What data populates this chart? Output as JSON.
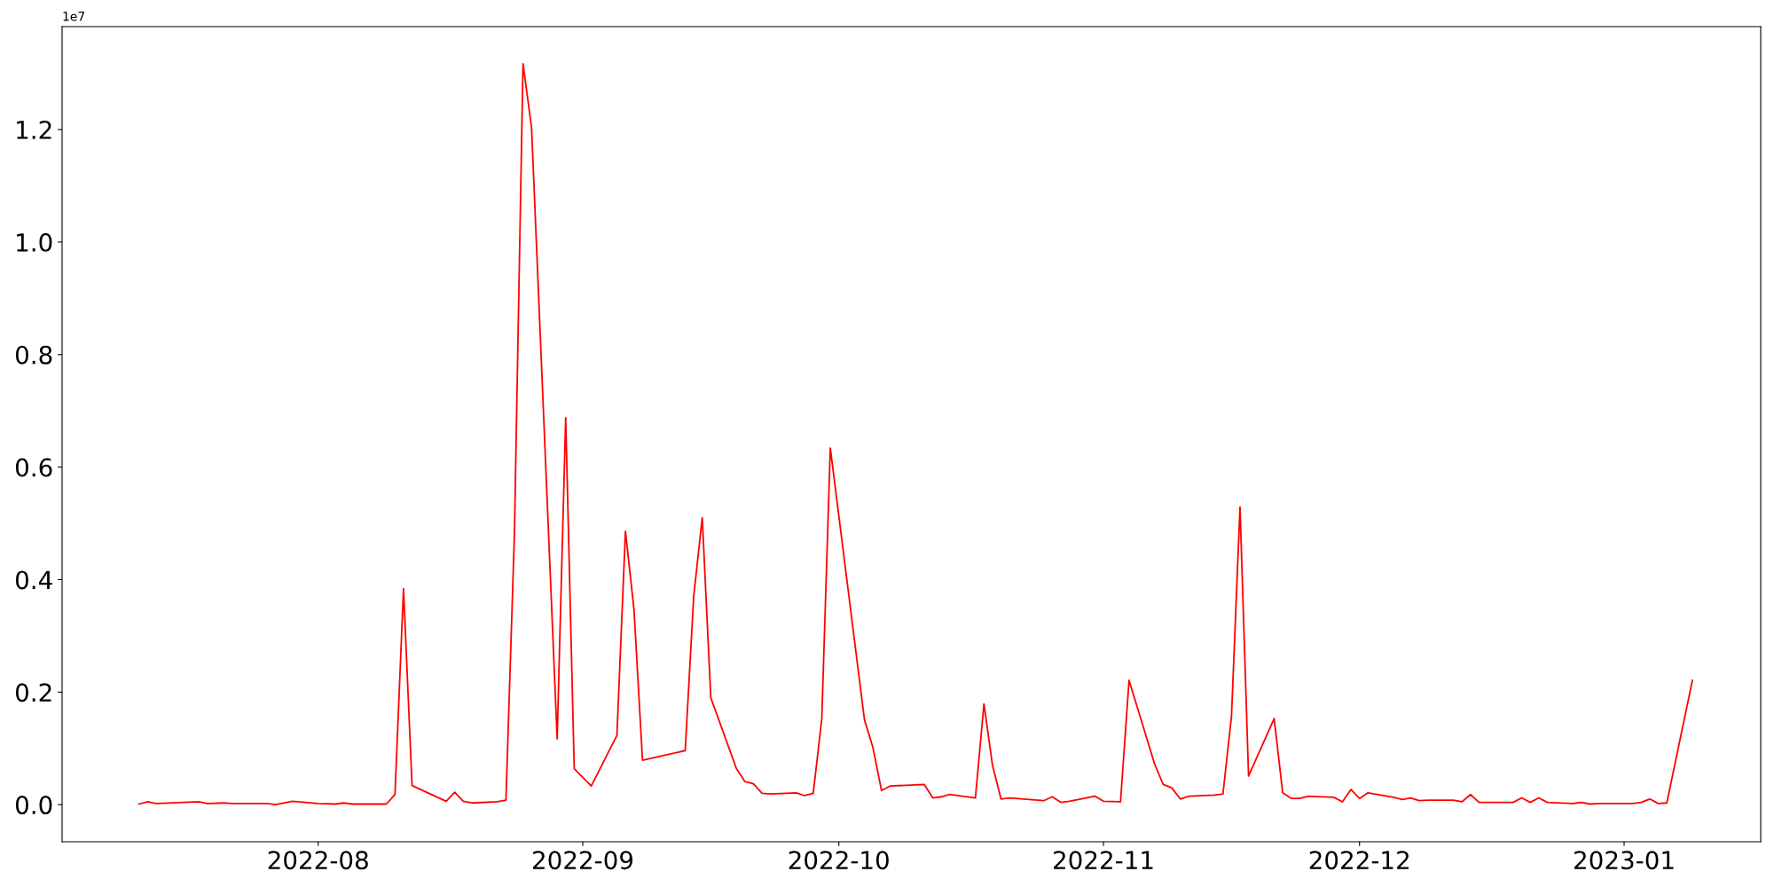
{
  "chart_data": {
    "type": "line",
    "x": [
      "2022-07-11",
      "2022-07-12",
      "2022-07-13",
      "2022-07-18",
      "2022-07-19",
      "2022-07-21",
      "2022-07-22",
      "2022-07-26",
      "2022-07-27",
      "2022-07-29",
      "2022-08-01",
      "2022-08-03",
      "2022-08-04",
      "2022-08-05",
      "2022-08-09",
      "2022-08-10",
      "2022-08-11",
      "2022-08-12",
      "2022-08-16",
      "2022-08-17",
      "2022-08-18",
      "2022-08-19",
      "2022-08-22",
      "2022-08-23",
      "2022-08-24",
      "2022-08-25",
      "2022-08-26",
      "2022-08-29",
      "2022-08-30",
      "2022-08-31",
      "2022-09-02",
      "2022-09-05",
      "2022-09-06",
      "2022-09-07",
      "2022-09-08",
      "2022-09-13",
      "2022-09-14",
      "2022-09-15",
      "2022-09-16",
      "2022-09-19",
      "2022-09-20",
      "2022-09-21",
      "2022-09-22",
      "2022-09-23",
      "2022-09-26",
      "2022-09-27",
      "2022-09-28",
      "2022-09-29",
      "2022-09-30",
      "2022-10-04",
      "2022-10-05",
      "2022-10-06",
      "2022-10-07",
      "2022-10-11",
      "2022-10-12",
      "2022-10-13",
      "2022-10-14",
      "2022-10-17",
      "2022-10-18",
      "2022-10-19",
      "2022-10-20",
      "2022-10-21",
      "2022-10-25",
      "2022-10-26",
      "2022-10-27",
      "2022-10-28",
      "2022-10-31",
      "2022-11-01",
      "2022-11-03",
      "2022-11-04",
      "2022-11-07",
      "2022-11-08",
      "2022-11-09",
      "2022-11-10",
      "2022-11-11",
      "2022-11-14",
      "2022-11-15",
      "2022-11-16",
      "2022-11-17",
      "2022-11-18",
      "2022-11-21",
      "2022-11-22",
      "2022-11-23",
      "2022-11-24",
      "2022-11-25",
      "2022-11-28",
      "2022-11-29",
      "2022-11-30",
      "2022-12-01",
      "2022-12-02",
      "2022-12-05",
      "2022-12-06",
      "2022-12-07",
      "2022-12-08",
      "2022-12-09",
      "2022-12-12",
      "2022-12-13",
      "2022-12-14",
      "2022-12-15",
      "2022-12-19",
      "2022-12-20",
      "2022-12-21",
      "2022-12-22",
      "2022-12-23",
      "2022-12-26",
      "2022-12-27",
      "2022-12-28",
      "2022-12-29",
      "2023-01-02",
      "2023-01-03",
      "2023-01-04",
      "2023-01-05",
      "2023-01-06",
      "2023-01-09"
    ],
    "series": [
      {
        "color": "#ff0000",
        "values": [
          0.001,
          0.005,
          0.002,
          0.005,
          0.002,
          0.003,
          0.002,
          0.002,
          0,
          0.006,
          0.002,
          0.001,
          0.003,
          0.001,
          0.001,
          0.018,
          0.384,
          0.034,
          0.006,
          0.022,
          0.006,
          0.003,
          0.005,
          0.008,
          0.484,
          1.317,
          1.204,
          0.117,
          0.688,
          0.064,
          0.033,
          0.123,
          0.486,
          0.347,
          0.079,
          0.096,
          0.371,
          0.51,
          0.19,
          0.064,
          0.041,
          0.037,
          0.02,
          0.019,
          0.021,
          0.016,
          0.02,
          0.152,
          0.634,
          0.151,
          0.101,
          0.025,
          0.033,
          0.036,
          0.012,
          0.014,
          0.018,
          0.012,
          0.179,
          0.07,
          0.01,
          0.012,
          0.007,
          0.014,
          0.004,
          0.006,
          0.015,
          0.006,
          0.005,
          0.221,
          0.072,
          0.036,
          0.03,
          0.01,
          0.015,
          0.017,
          0.019,
          0.157,
          0.529,
          0.051,
          0.153,
          0.021,
          0.011,
          0.011,
          0.015,
          0.013,
          0.005,
          0.027,
          0.011,
          0.021,
          0.013,
          0.009,
          0.012,
          0.007,
          0.008,
          0.008,
          0.005,
          0.018,
          0.004,
          0.004,
          0.012,
          0.004,
          0.012,
          0.004,
          0.002,
          0.004,
          0.001,
          0.002,
          0.002,
          0.004,
          0.01,
          0.002,
          0.003,
          0.221
        ]
      }
    ],
    "xlim": [
      "2022-07-02",
      "2023-01-17"
    ],
    "xticks": [
      {
        "value": "2022-08-01",
        "label": "2022-08"
      },
      {
        "value": "2022-09-01",
        "label": "2022-09"
      },
      {
        "value": "2022-10-01",
        "label": "2022-10"
      },
      {
        "value": "2022-11-01",
        "label": "2022-11"
      },
      {
        "value": "2022-12-01",
        "label": "2022-12"
      },
      {
        "value": "2023-01-01",
        "label": "2023-01"
      }
    ],
    "ylim": [
      -0.066,
      1.383
    ],
    "yticks": [
      {
        "value": 0,
        "label": "0.0"
      },
      0.2,
      0.4,
      0.6,
      0.8,
      {
        "value": 1,
        "label": "1.0"
      },
      1.2
    ],
    "annotations": [
      "1e7"
    ],
    "grid": false,
    "legend": false,
    "marker": "none",
    "line_style": "solid"
  }
}
